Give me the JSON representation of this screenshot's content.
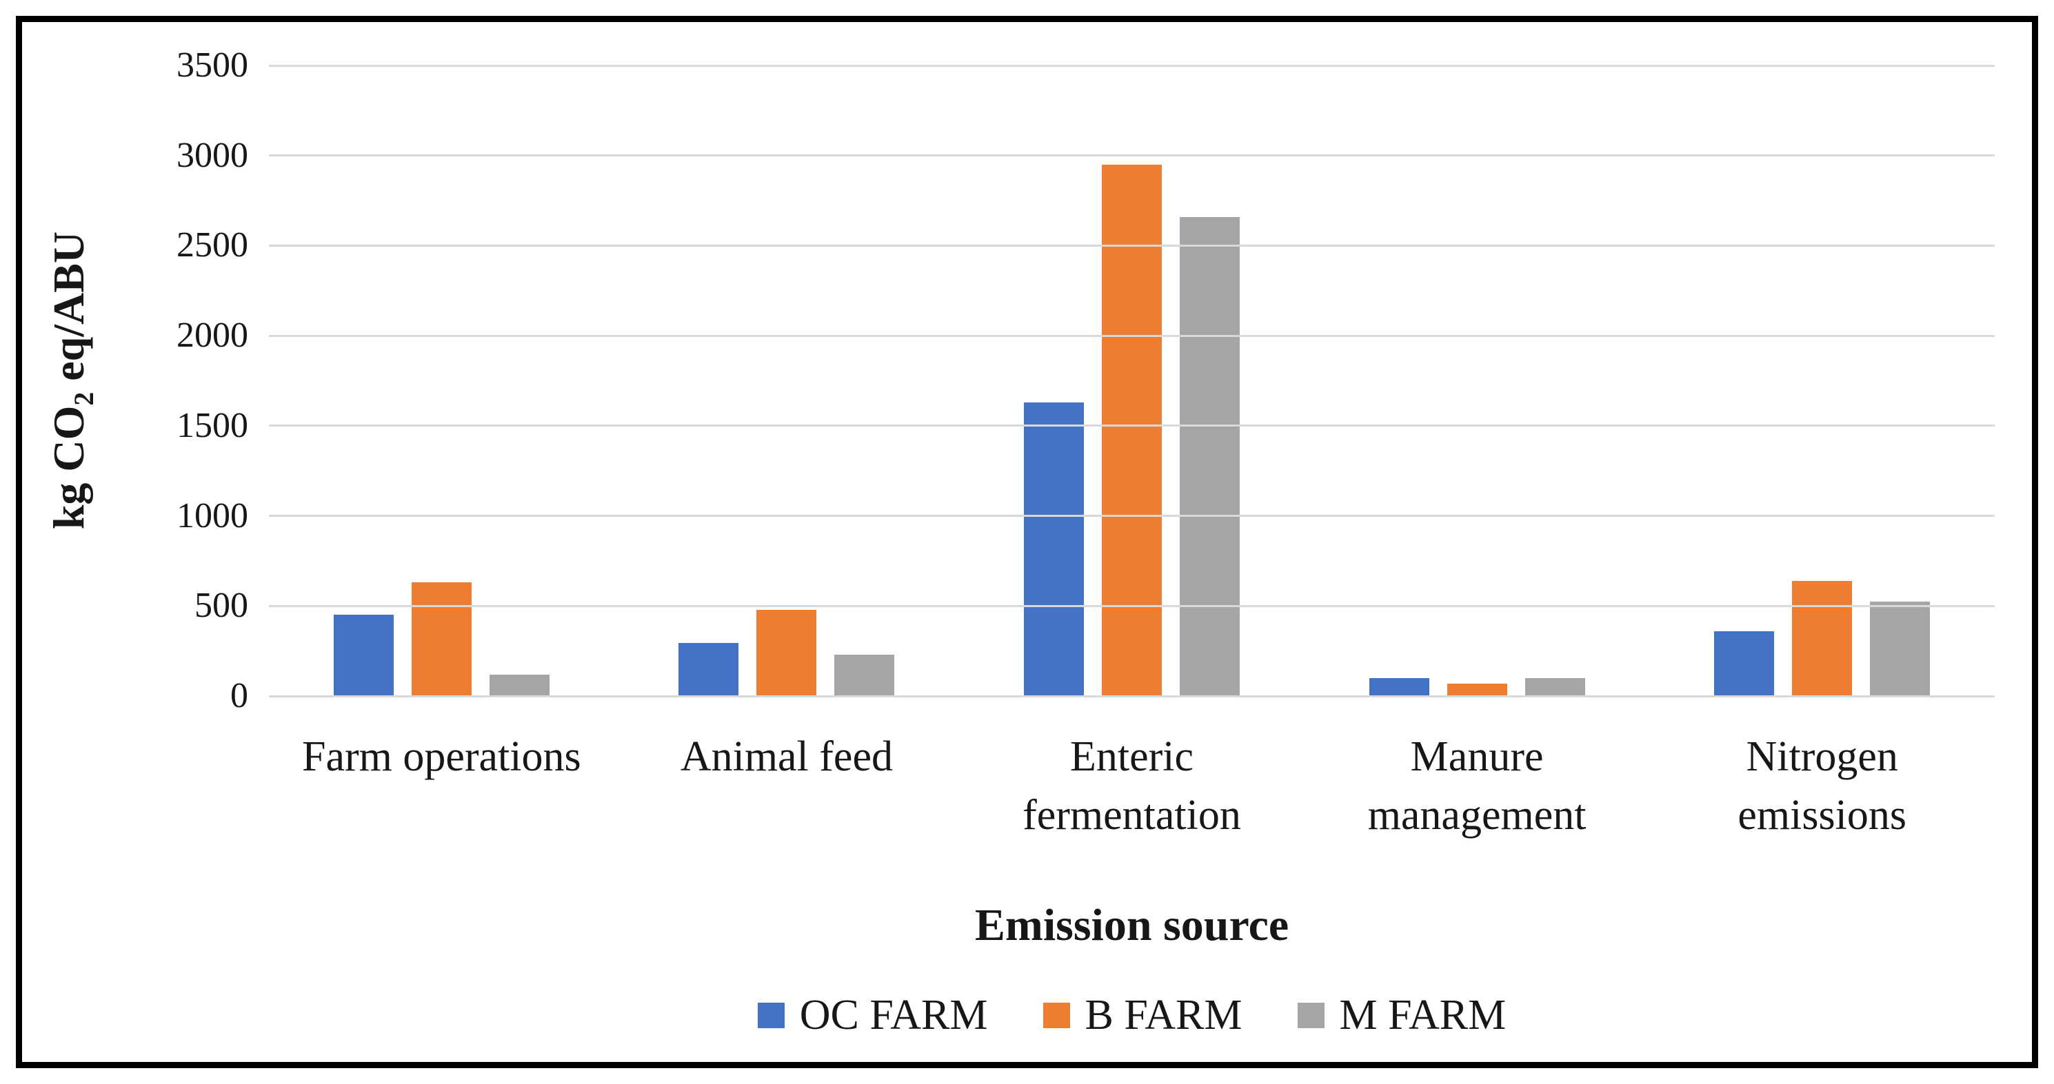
{
  "figure": {
    "background_color": "#ffffff",
    "border_color": "#000000"
  },
  "chart_data": {
    "type": "bar",
    "title": "",
    "xlabel": "Emission source",
    "ylabel": "kg CO2 eq/ABU",
    "ylabel_parts": {
      "prefix": "kg CO",
      "sub": "2",
      "suffix": " eq/ABU"
    },
    "ylim": [
      0,
      3500
    ],
    "yticks": [
      3500,
      3000,
      2500,
      2000,
      1500,
      1000,
      500,
      0
    ],
    "grid": true,
    "gridline_color": "#d9d9d9",
    "legend_position": "bottom",
    "categories": [
      "Farm operations",
      "Animal feed",
      "Enteric fermentation",
      "Manure management",
      "Nitrogen emissions"
    ],
    "series": [
      {
        "name": "OC FARM",
        "color": "#4472C4",
        "values": [
          450,
          295,
          1630,
          100,
          360
        ]
      },
      {
        "name": "B FARM",
        "color": "#ED7D31",
        "values": [
          630,
          480,
          2950,
          70,
          640
        ]
      },
      {
        "name": "M FARM",
        "color": "#A5A5A5",
        "values": [
          120,
          230,
          2660,
          100,
          525
        ]
      }
    ]
  }
}
